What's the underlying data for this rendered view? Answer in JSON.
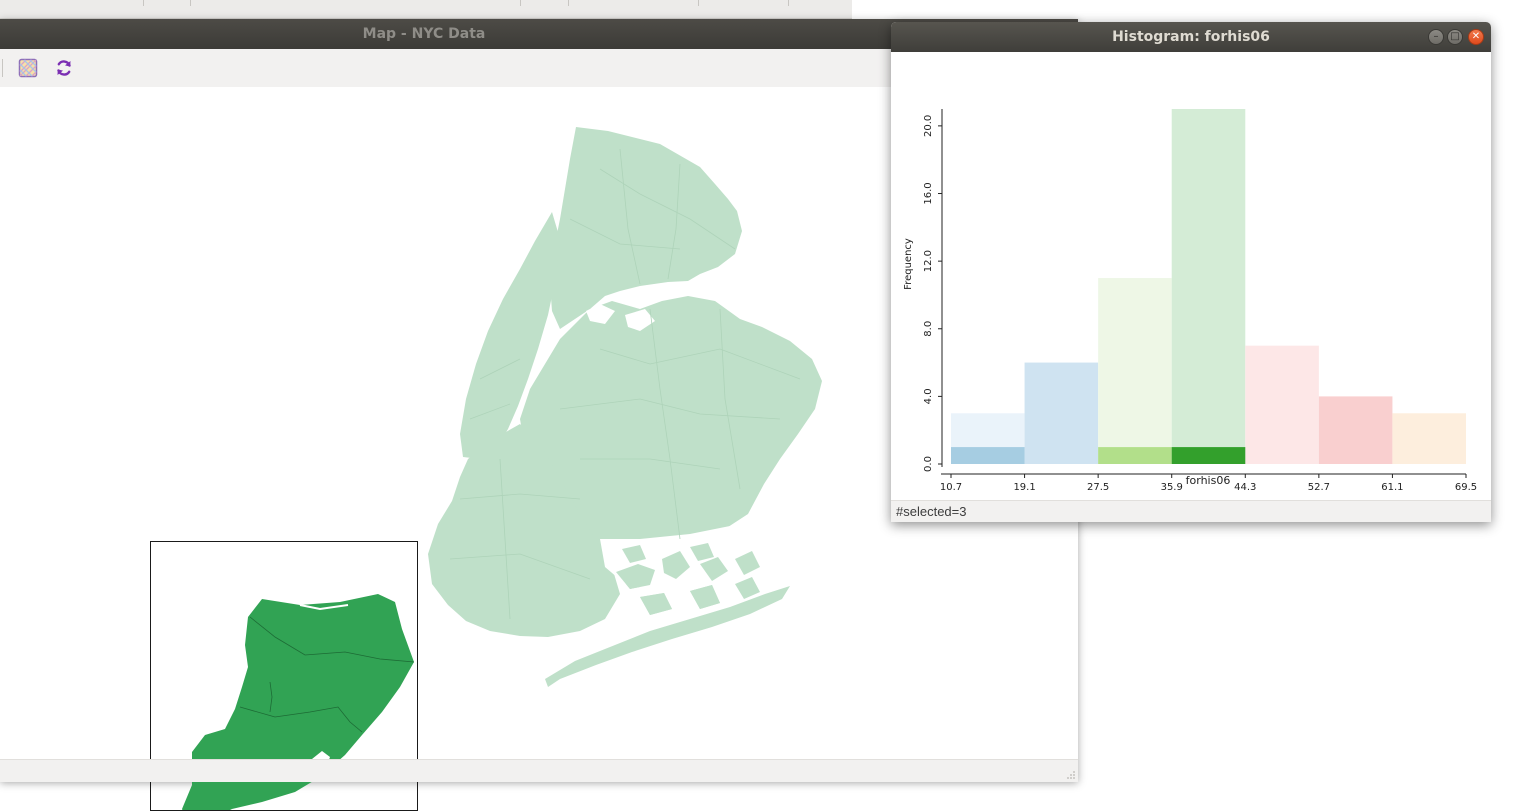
{
  "map_window": {
    "title": "Map - NYC Data",
    "toolbar": {
      "select_tool_icon": "selection-pattern-icon",
      "refresh_icon": "refresh-icon"
    },
    "colors": {
      "base_fill": "#bfe0c9",
      "selected_fill": "#31a354",
      "inset_border": "#1a1a1a"
    }
  },
  "histogram_window": {
    "title": "Histogram: forhis06",
    "status": "#selected=3",
    "chart_data": {
      "type": "bar",
      "title": "",
      "xlabel": "forhis06",
      "ylabel": "Frequency",
      "bin_edges": [
        "10.7",
        "19.1",
        "27.5",
        "35.9",
        "44.3",
        "52.7",
        "61.1",
        "69.5"
      ],
      "y_ticks": [
        "0.0",
        "4.0",
        "8.0",
        "12.0",
        "16.0",
        "20.0"
      ],
      "ylim": [
        0,
        21
      ],
      "series": [
        {
          "values": [
            3,
            6,
            11,
            21,
            7,
            4,
            3
          ]
        },
        {
          "values": [
            1,
            0,
            1,
            1,
            0,
            0,
            0
          ]
        }
      ],
      "colors": [
        "#eaf3fa",
        "#cfe3f1",
        "#eef7e6",
        "#d4ecd6",
        "#fde7e7",
        "#f9cfcf",
        "#fdeedd"
      ],
      "selected_colors": [
        "#a6cde2",
        "#a6cde2",
        "#b2df8a",
        "#33a02c",
        "#fb9a99",
        "#fb9a99",
        "#fdbf6f"
      ]
    }
  }
}
